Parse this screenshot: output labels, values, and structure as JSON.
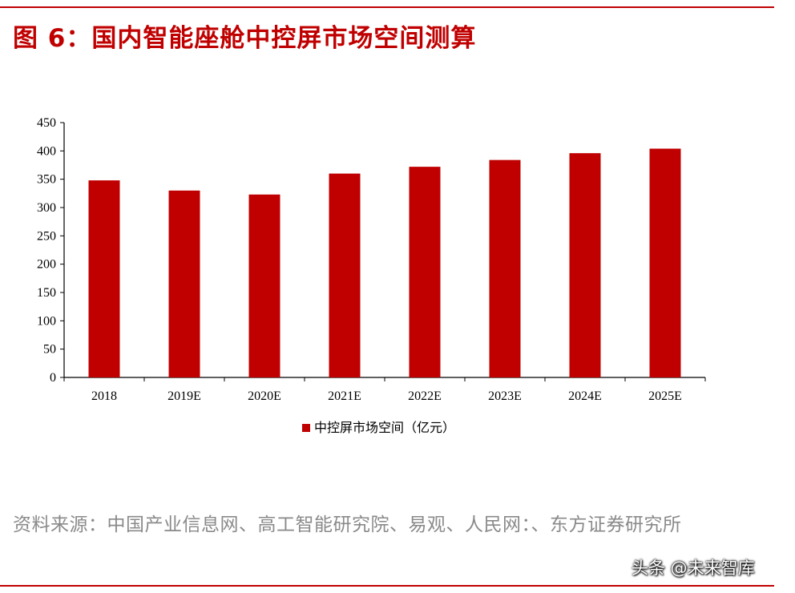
{
  "figure": {
    "title": "图 6：国内智能座舱中控屏市场空间测算",
    "source": "资料来源：中国产业信息网、高工智能研究院、易观、人民网：、东方证券研究所",
    "watermark": "头条 @未来智库",
    "accent_color": "#c00000"
  },
  "chart_data": {
    "type": "bar",
    "categories": [
      "2018",
      "2019E",
      "2020E",
      "2021E",
      "2022E",
      "2023E",
      "2024E",
      "2025E"
    ],
    "series": [
      {
        "name": "中控屏市场空间（亿元）",
        "values": [
          348,
          330,
          323,
          360,
          372,
          384,
          396,
          404
        ],
        "color": "#c00000"
      }
    ],
    "title": "",
    "xlabel": "",
    "ylabel": "",
    "ylim": [
      0,
      450
    ],
    "yticks": [
      0,
      50,
      100,
      150,
      200,
      250,
      300,
      350,
      400,
      450
    ],
    "grid": false,
    "legend_position": "bottom-center"
  }
}
